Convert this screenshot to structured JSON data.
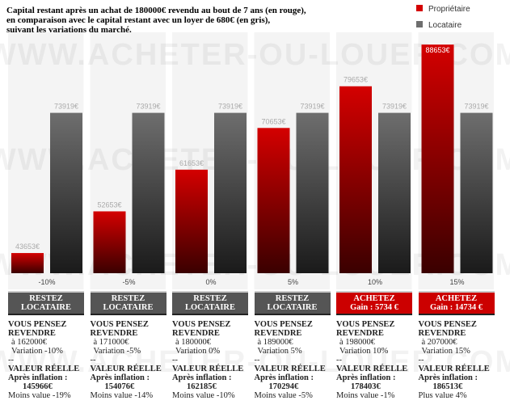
{
  "chart_data": {
    "type": "bar",
    "title": [
      "Capital restant après un achat de 180000€ revendu au bout de 7 ans (en rouge),",
      "en comparaison avec le capital restant avec un loyer de 680€ (en gris),",
      "suivant les variations du marché."
    ],
    "categories": [
      "-10%",
      "-5%",
      "0%",
      "5%",
      "10%",
      "15%"
    ],
    "series": [
      {
        "name": "Propriétaire",
        "color": "#d40000",
        "values": [
          43653,
          52653,
          61653,
          70653,
          79653,
          88653
        ],
        "value_labels": [
          "43653€",
          "52653€",
          "61653€",
          "70653€",
          "79653€",
          "88653€"
        ]
      },
      {
        "name": "Locataire",
        "color": "#6e6e6e",
        "values": [
          73919,
          73919,
          73919,
          73919,
          73919,
          73919
        ],
        "value_labels": [
          "73919€",
          "73919€",
          "73919€",
          "73919€",
          "73919€",
          "73919€"
        ]
      }
    ],
    "ylim": [
      39300,
      91300
    ],
    "legend": "top-right"
  },
  "watermark": "WWW.ACHETER-OU-LOUER.COM",
  "panels": [
    {
      "button": [
        "RESTEZ",
        "LOCATAIRE"
      ],
      "button_color": "#555555",
      "heading": "VOUS PENSEZ REVENDRE",
      "price": "à 162000€",
      "variation": "Variation -10%",
      "separator": "--",
      "real_heading": "VALEUR RÉELLE",
      "inflation": "Après inflation :",
      "real_value": "145966€",
      "result": "Moins value -19%"
    },
    {
      "button": [
        "RESTEZ",
        "LOCATAIRE"
      ],
      "button_color": "#555555",
      "heading": "VOUS PENSEZ REVENDRE",
      "price": "à 171000€",
      "variation": "Variation -5%",
      "separator": "--",
      "real_heading": "VALEUR RÉELLE",
      "inflation": "Après inflation :",
      "real_value": "154076€",
      "result": "Moins value -14%"
    },
    {
      "button": [
        "RESTEZ",
        "LOCATAIRE"
      ],
      "button_color": "#555555",
      "heading": "VOUS PENSEZ REVENDRE",
      "price": "à 180000€",
      "variation": "Variation 0%",
      "separator": "--",
      "real_heading": "VALEUR RÉELLE",
      "inflation": "Après inflation :",
      "real_value": "162185€",
      "result": "Moins value -10%"
    },
    {
      "button": [
        "RESTEZ",
        "LOCATAIRE"
      ],
      "button_color": "#555555",
      "heading": "VOUS PENSEZ REVENDRE",
      "price": "à 189000€",
      "variation": "Variation 5%",
      "separator": "--",
      "real_heading": "VALEUR RÉELLE",
      "inflation": "Après inflation :",
      "real_value": "170294€",
      "result": "Moins value -5%"
    },
    {
      "button": [
        "ACHETEZ",
        "Gain : 5734 €"
      ],
      "button_color": "#cc0000",
      "heading": "VOUS PENSEZ REVENDRE",
      "price": "à 198000€",
      "variation": "Variation 10%",
      "separator": "--",
      "real_heading": "VALEUR RÉELLE",
      "inflation": "Après inflation :",
      "real_value": "178403€",
      "result": "Moins value -1%"
    },
    {
      "button": [
        "ACHETEZ",
        "Gain : 14734 €"
      ],
      "button_color": "#cc0000",
      "heading": "VOUS PENSEZ REVENDRE",
      "price": "à 207000€",
      "variation": "Variation 15%",
      "separator": "--",
      "real_heading": "VALEUR RÉELLE",
      "inflation": "Après inflation :",
      "real_value": "186513€",
      "result": "Plus value 4%"
    }
  ]
}
